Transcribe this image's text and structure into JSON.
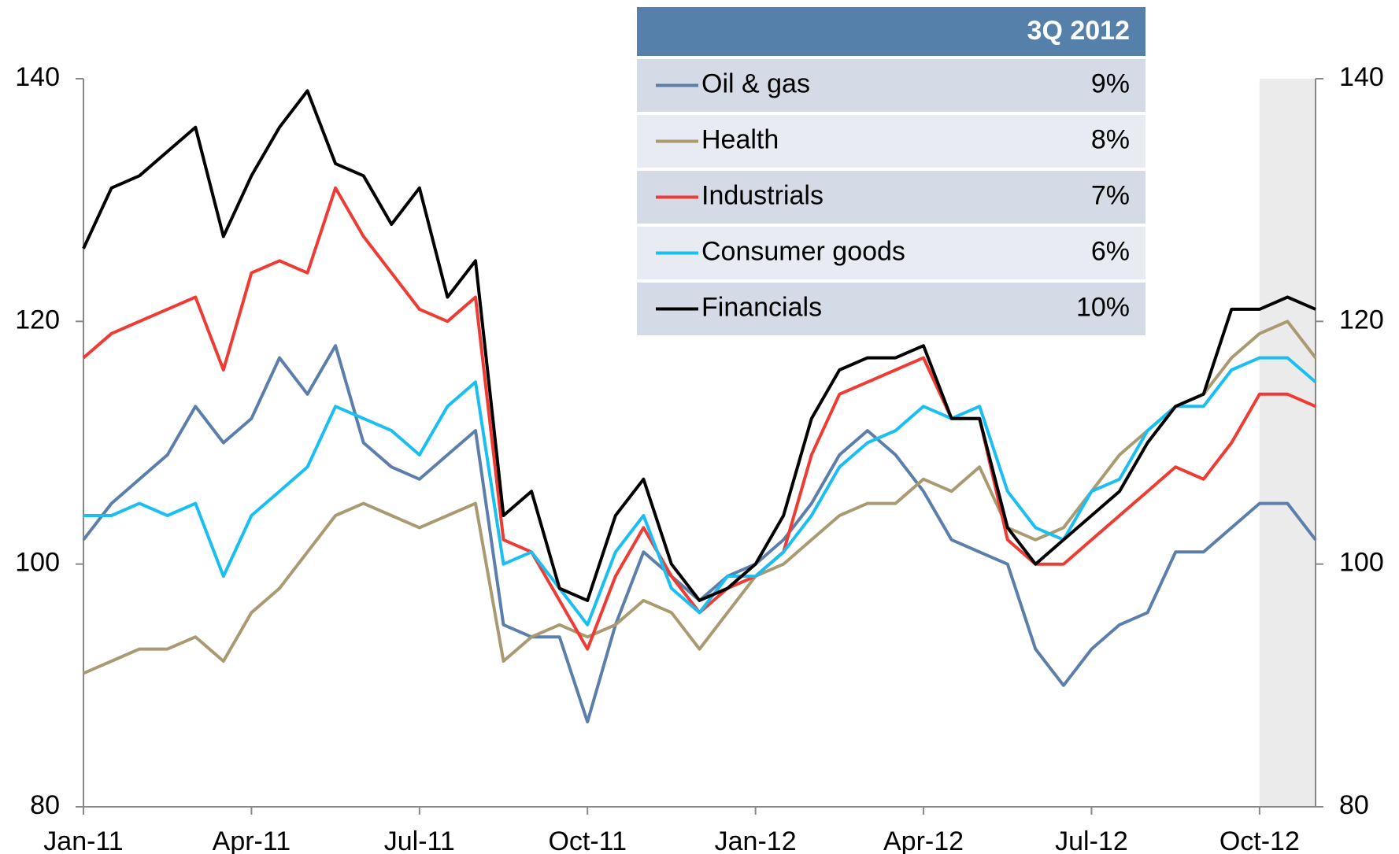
{
  "chart_data": {
    "type": "line",
    "x": [
      0,
      0.5,
      1,
      1.5,
      2,
      2.5,
      3,
      3.5,
      4,
      4.5,
      5,
      5.5,
      6,
      6.5,
      7,
      7.5,
      8,
      8.5,
      9,
      9.5,
      10,
      10.5,
      11,
      11.5,
      12,
      12.5,
      13,
      13.5,
      14,
      14.5,
      15,
      15.5,
      16,
      16.5,
      17,
      17.5,
      18,
      18.5,
      19,
      19.5,
      20,
      20.5,
      21,
      21.5,
      22
    ],
    "xlim": [
      0,
      22
    ],
    "xticks": [
      {
        "value": 0,
        "label": "Jan-11"
      },
      {
        "value": 3,
        "label": "Apr-11"
      },
      {
        "value": 6,
        "label": "Jul-11"
      },
      {
        "value": 9,
        "label": "Oct-11"
      },
      {
        "value": 12,
        "label": "Jan-12"
      },
      {
        "value": 15,
        "label": "Apr-12"
      },
      {
        "value": 18,
        "label": "Jul-12"
      },
      {
        "value": 21,
        "label": "Oct-12"
      }
    ],
    "ylim": [
      80,
      140
    ],
    "yticks": [
      80,
      100,
      120,
      140
    ],
    "y2lim": [
      80,
      140
    ],
    "y2ticks": [
      80,
      100,
      120,
      140
    ],
    "highlight": [
      21,
      22
    ],
    "highlight_color": "#ebebeb",
    "series": [
      {
        "name": "Oil & gas",
        "color": "#5b7faa",
        "values": [
          102,
          105,
          107,
          109,
          113,
          110,
          112,
          117,
          114,
          118,
          110,
          108,
          107,
          109,
          111,
          95,
          94,
          94,
          87,
          95,
          101,
          99,
          97,
          99,
          100,
          102,
          105,
          109,
          111,
          109,
          106,
          102,
          101,
          100,
          93,
          90,
          93,
          95,
          96,
          101,
          101,
          103,
          105,
          105,
          102
        ]
      },
      {
        "name": "Health",
        "color": "#a99a72",
        "values": [
          91,
          92,
          93,
          93,
          94,
          92,
          96,
          98,
          101,
          104,
          105,
          104,
          103,
          104,
          105,
          92,
          94,
          95,
          94,
          95,
          97,
          96,
          93,
          96,
          99,
          100,
          102,
          104,
          105,
          105,
          107,
          106,
          108,
          103,
          102,
          103,
          106,
          109,
          111,
          113,
          114,
          117,
          119,
          120,
          117
        ]
      },
      {
        "name": "Industrials",
        "color": "#ee3b34",
        "values": [
          117,
          119,
          120,
          121,
          122,
          116,
          124,
          125,
          124,
          131,
          127,
          124,
          121,
          120,
          122,
          102,
          101,
          97,
          93,
          99,
          103,
          99,
          96,
          98,
          99,
          101,
          109,
          114,
          115,
          116,
          117,
          112,
          112,
          102,
          100,
          100,
          102,
          104,
          106,
          108,
          107,
          110,
          114,
          114,
          113
        ]
      },
      {
        "name": "Consumer goods",
        "color": "#19bff0",
        "values": [
          104,
          104,
          105,
          104,
          105,
          99,
          104,
          106,
          108,
          113,
          112,
          111,
          109,
          113,
          115,
          100,
          101,
          98,
          95,
          101,
          104,
          98,
          96,
          99,
          99,
          101,
          104,
          108,
          110,
          111,
          113,
          112,
          113,
          106,
          103,
          102,
          106,
          107,
          111,
          113,
          113,
          116,
          117,
          117,
          115
        ]
      },
      {
        "name": "Financials",
        "color": "#000000",
        "values": [
          126,
          131,
          132,
          134,
          136,
          127,
          132,
          136,
          139,
          133,
          132,
          128,
          131,
          122,
          125,
          104,
          106,
          98,
          97,
          104,
          107,
          100,
          97,
          98,
          100,
          104,
          112,
          116,
          117,
          117,
          118,
          112,
          112,
          103,
          100,
          102,
          104,
          106,
          110,
          113,
          114,
          121,
          121,
          122,
          121
        ]
      }
    ],
    "table": {
      "header": "3Q 2012",
      "header_color": "#5580aa",
      "row_colors": [
        "#d5dbe6",
        "#e8ebf1"
      ],
      "values": [
        "9%",
        "8%",
        "7%",
        "6%",
        "10%"
      ]
    }
  }
}
